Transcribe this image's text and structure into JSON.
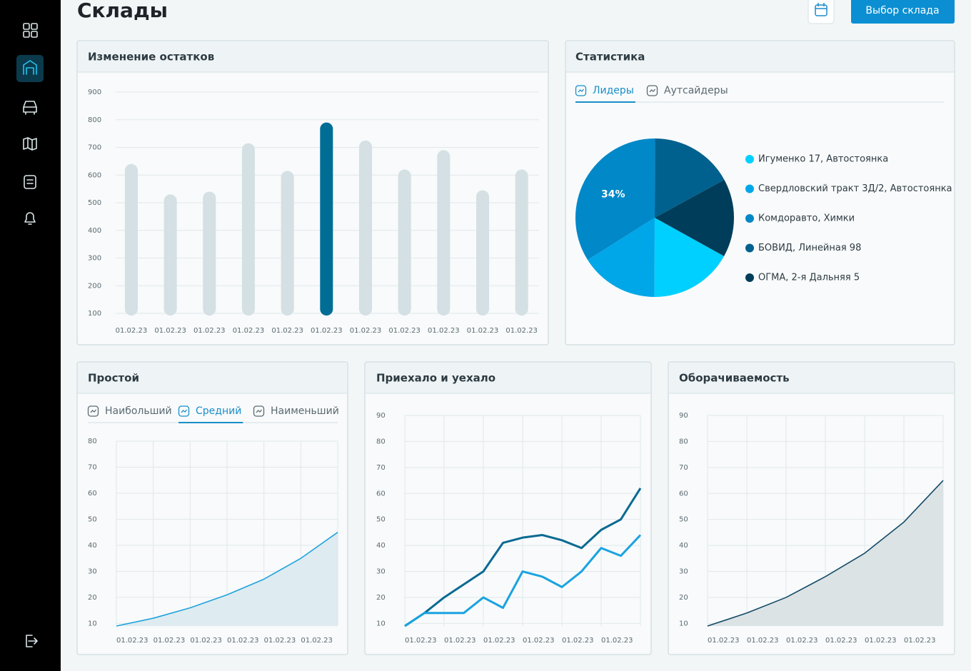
{
  "header": {
    "title": "Склады",
    "button": "Выбор склада"
  },
  "chart_data": [
    {
      "type": "bar",
      "title": "Изменение остатков",
      "categories": [
        "01.02.23",
        "01.02.23",
        "01.02.23",
        "01.02.23",
        "01.02.23",
        "01.02.23",
        "01.02.23",
        "01.02.23",
        "01.02.23",
        "01.02.23",
        "01.02.23"
      ],
      "values": [
        640,
        530,
        540,
        715,
        615,
        790,
        725,
        620,
        690,
        545,
        620
      ],
      "colors": [
        "#d4e0e3",
        "#d4e0e3",
        "#d4e0e3",
        "#d4e0e3",
        "#d4e0e3",
        "#006d95",
        "#d4e0e3",
        "#d4e0e3",
        "#d4e0e3",
        "#d4e0e3",
        "#d4e0e3"
      ],
      "ylim": [
        100,
        900
      ],
      "yticks": [
        100,
        200,
        300,
        400,
        500,
        600,
        700,
        800,
        900
      ],
      "grid": true
    },
    {
      "type": "pie",
      "title": "Статистика",
      "tabs": [
        "Лидеры",
        "Аутсайдеры"
      ],
      "active_tab": 0,
      "categories": [
        "Игуменко 17, Автостоянка",
        "Свердловский тракт 3Д/2, Автостоянка",
        "Комдоравто, Химки",
        "БОВИД, Линейная 98",
        "ОГМА, 2-я Дальняя 5"
      ],
      "values": [
        17,
        16,
        34,
        17,
        16
      ],
      "value_labels": [
        null,
        null,
        "34%",
        null,
        null
      ],
      "colors": [
        "#00d0ff",
        "#00a7e8",
        "#0088c8",
        "#00618e",
        "#003d5a"
      ],
      "start_angle": 119
    },
    {
      "type": "area",
      "title": "Простой",
      "tabs": [
        "Наибольший",
        "Средний",
        "Наименьший"
      ],
      "active_tab": 1,
      "categories": [
        "01.02.23",
        "01.02.23",
        "01.02.23",
        "01.02.23",
        "01.02.23",
        "01.02.23",
        null
      ],
      "series": [
        {
          "color": "#1ea3dc",
          "fill": "#deebf0",
          "values": [
            9,
            12,
            16,
            21,
            27,
            35,
            45
          ]
        }
      ],
      "ylim": [
        9,
        80
      ],
      "yticks": [
        10,
        20,
        30,
        40,
        50,
        60,
        70,
        80
      ],
      "grid": true
    },
    {
      "type": "line",
      "title": "Приехало и уехало",
      "categories": [
        "01.02.23",
        null,
        "01.02.23",
        null,
        "01.02.23",
        null,
        "01.02.23",
        null,
        "01.02.23",
        null,
        "01.02.23",
        null,
        null
      ],
      "series": [
        {
          "color": "#0a6a92",
          "values": [
            9,
            14,
            20,
            25,
            30,
            41,
            43,
            44,
            42,
            39,
            46,
            50,
            62
          ]
        },
        {
          "color": "#1aa3e0",
          "values": [
            9,
            14,
            14,
            14,
            20,
            16,
            30,
            28,
            24,
            30,
            39,
            36,
            44
          ]
        }
      ],
      "ylim": [
        9,
        90
      ],
      "yticks": [
        10,
        20,
        30,
        40,
        50,
        60,
        70,
        80,
        90
      ],
      "grid": true
    },
    {
      "type": "area",
      "title": "Оборачиваемость",
      "categories": [
        "01.02.23",
        "01.02.23",
        "01.02.23",
        "01.02.23",
        "01.02.23",
        "01.02.23",
        null
      ],
      "series": [
        {
          "color": "#134b67",
          "fill": "#dce3e5",
          "values": [
            9,
            14,
            20,
            28,
            37,
            49,
            65
          ]
        }
      ],
      "ylim": [
        9,
        90
      ],
      "yticks": [
        10,
        20,
        30,
        40,
        50,
        60,
        70,
        80,
        90
      ],
      "grid": true
    }
  ]
}
